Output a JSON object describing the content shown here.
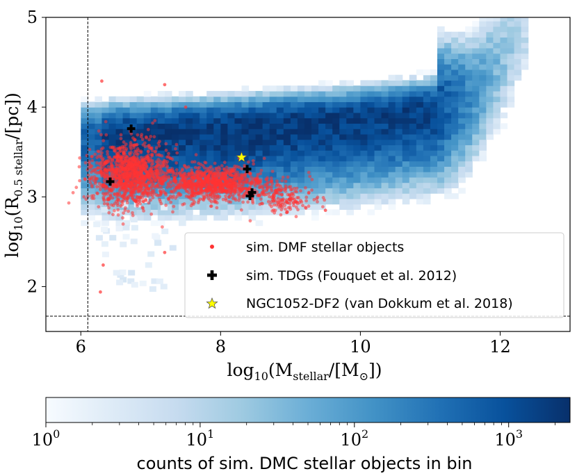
{
  "chart_data": {
    "type": "scatter",
    "xlabel_parts": [
      "log",
      "10",
      "(M",
      "stellar",
      "/[M",
      "⊙",
      "])"
    ],
    "ylabel_parts": [
      "log",
      "10",
      "(R",
      "0.5 stellar",
      "/[pc])"
    ],
    "xlim": [
      5.5,
      13.0
    ],
    "ylim": [
      1.5,
      5.0
    ],
    "x_ticks": [
      6,
      8,
      10,
      12
    ],
    "y_ticks": [
      2,
      3,
      4,
      5
    ],
    "x_ticklabels": [
      "6",
      "8",
      "10",
      "12"
    ],
    "y_ticklabels": [
      "2",
      "3",
      "4",
      "5"
    ],
    "reference_lines": {
      "vertical_x": 6.1,
      "horizontal_y": 1.67
    },
    "heatmap": {
      "description_of_band": "2D histogram of sim. DMC stellar objects",
      "colormap": "Blues",
      "color_scale": "log",
      "x_range": [
        6.0,
        12.3
      ],
      "ridge": [
        [
          6.0,
          3.7
        ],
        [
          7.0,
          3.73
        ],
        [
          8.0,
          3.77
        ],
        [
          9.0,
          3.82
        ],
        [
          10.0,
          3.88
        ],
        [
          11.0,
          3.98
        ],
        [
          11.6,
          4.15
        ],
        [
          12.3,
          4.85
        ]
      ]
    },
    "series": [
      {
        "name": "sim. DMF stellar objects",
        "marker": "dot",
        "color": "#ff3333",
        "clusters": [
          {
            "x_center": 6.7,
            "y_center": 3.25,
            "x_spread": 0.45,
            "y_spread": 0.22,
            "count": 1100
          },
          {
            "x_center": 7.9,
            "y_center": 3.15,
            "x_spread": 0.6,
            "y_spread": 0.12,
            "count": 900
          },
          {
            "x_center": 8.9,
            "y_center": 3.0,
            "x_spread": 0.35,
            "y_spread": 0.12,
            "count": 180
          }
        ],
        "extremes": [
          [
            6.28,
            1.94
          ],
          [
            6.32,
            2.24
          ],
          [
            6.3,
            4.29
          ],
          [
            7.2,
            4.25
          ],
          [
            7.5,
            4.0
          ],
          [
            9.5,
            2.85
          ],
          [
            7.2,
            2.38
          ]
        ]
      },
      {
        "name": "sim. TDGs (Fouquet et al. 2012)",
        "marker": "plus",
        "color": "#000000",
        "points": [
          [
            6.42,
            3.17
          ],
          [
            6.72,
            3.76
          ],
          [
            8.38,
            3.31
          ],
          [
            8.45,
            3.05
          ],
          [
            8.42,
            3.01
          ]
        ]
      },
      {
        "name": "NGC1052-DF2 (van Dokkum et al. 2018)",
        "marker": "star",
        "color": "#ffff00",
        "points": [
          [
            8.3,
            3.44
          ]
        ]
      }
    ],
    "legend_position": "lower-right",
    "colorbar": {
      "label": "counts of sim. DMC stellar objects in bin",
      "scale": "log",
      "range": [
        1,
        2500
      ],
      "ticks": [
        1,
        10,
        100,
        1000
      ],
      "tick_bases": [
        "10",
        "10",
        "10",
        "10"
      ],
      "tick_exponents": [
        "0",
        "1",
        "2",
        "3"
      ],
      "colors": [
        "#f7fbff",
        "#deebf7",
        "#c6dbef",
        "#9ecae1",
        "#6baed6",
        "#4292c6",
        "#2171b5",
        "#08519c",
        "#08306b"
      ]
    }
  }
}
